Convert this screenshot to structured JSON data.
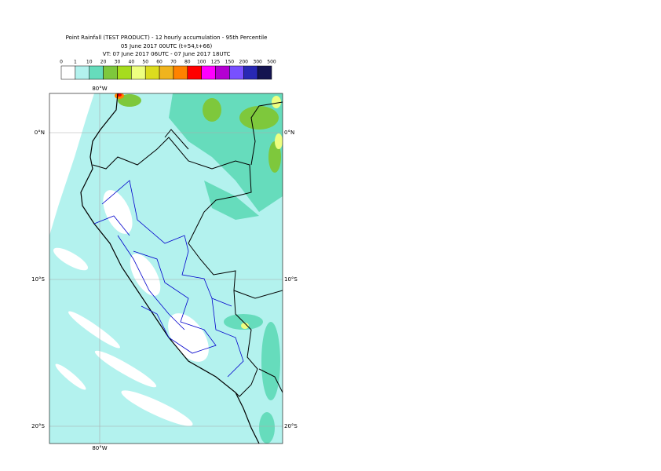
{
  "header": {
    "title": "Point Rainfall (TEST PRODUCT) - 12 hourly accumulation - 95th Percentile",
    "base": "05 June 2017 00UTC (t+54,t+66)",
    "valid": "VT: 07 June 2017 06UTC - 07 June 2017 18UTC"
  },
  "legend": {
    "levels": [
      0,
      1,
      10,
      20,
      30,
      40,
      50,
      60,
      70,
      80,
      100,
      125,
      150,
      200,
      300,
      500
    ],
    "colors": [
      "#ffffff",
      "#b3f2ee",
      "#66dcbc",
      "#7ec83c",
      "#a6dc1e",
      "#eeff80",
      "#dcdc1e",
      "#f0b41e",
      "#ff8200",
      "#ff0000",
      "#ff00ff",
      "#b400d2",
      "#7850ff",
      "#2828b4",
      "#141450"
    ]
  },
  "map": {
    "lon_labels": [
      "80°W"
    ],
    "lat_labels": [
      "0°N",
      "10°S",
      "20°S"
    ]
  }
}
